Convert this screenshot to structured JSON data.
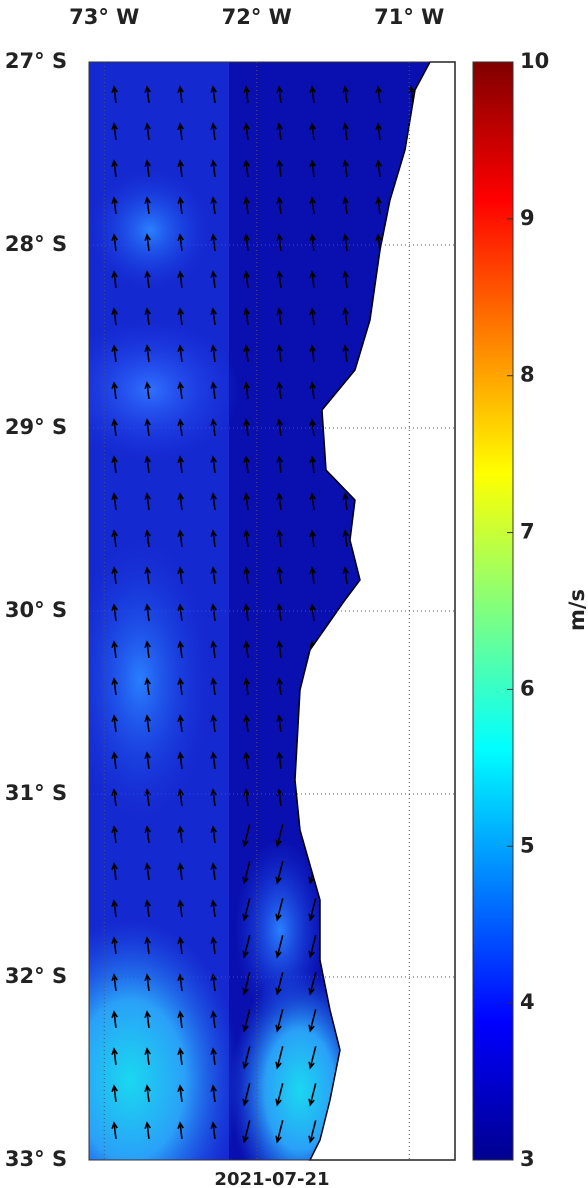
{
  "map": {
    "date": "2021-07-21",
    "xlim": [
      -73.1,
      -70.7
    ],
    "ylim": [
      -33,
      -27
    ],
    "xticks": [
      {
        "value": -73,
        "label": "73° W"
      },
      {
        "value": -72,
        "label": "72° W"
      },
      {
        "value": -71,
        "label": "71° W"
      }
    ],
    "yticks": [
      {
        "value": -27,
        "label": "27° S"
      },
      {
        "value": -28,
        "label": "28° S"
      },
      {
        "value": -29,
        "label": "29° S"
      },
      {
        "value": -30,
        "label": "30° S"
      },
      {
        "value": -31,
        "label": "31° S"
      },
      {
        "value": -32,
        "label": "32° S"
      },
      {
        "value": -33,
        "label": "33° S"
      }
    ],
    "grid": true,
    "colorbar": {
      "label": "m/s",
      "clim": [
        3,
        10
      ],
      "ticks": [
        3,
        4,
        5,
        6,
        7,
        8,
        9,
        10
      ]
    }
  }
}
